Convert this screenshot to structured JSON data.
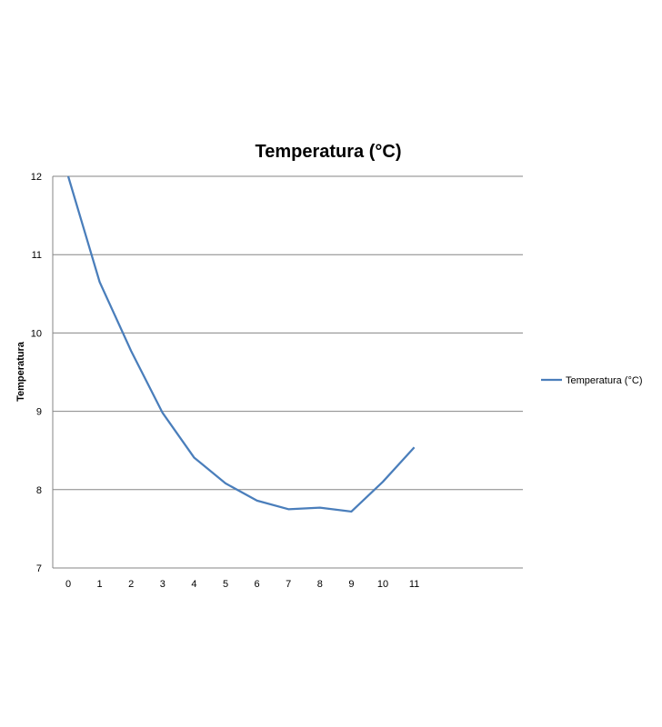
{
  "chart_data": {
    "type": "line",
    "title": "Temperatura (°C)",
    "xlabel": "",
    "ylabel": "Temperatura",
    "x": [
      0,
      1,
      2,
      3,
      4,
      5,
      6,
      7,
      8,
      9,
      10,
      11
    ],
    "x_tick_labels": [
      "0",
      "1",
      "2",
      "3",
      "4",
      "5",
      "6",
      "7",
      "8",
      "9",
      "10",
      "11"
    ],
    "y_ticks": [
      7,
      8,
      9,
      10,
      11,
      12
    ],
    "y_tick_labels": [
      "7",
      "8",
      "9",
      "10",
      "11",
      "12"
    ],
    "ylim": [
      7,
      12
    ],
    "grid": true,
    "legend_position": "right",
    "series": [
      {
        "name": "Temperatura (°C)",
        "color": "#4a7ebb",
        "values": [
          12.0,
          10.65,
          9.77,
          8.98,
          8.41,
          8.08,
          7.86,
          7.75,
          7.77,
          7.72,
          8.1,
          8.54
        ]
      }
    ]
  }
}
